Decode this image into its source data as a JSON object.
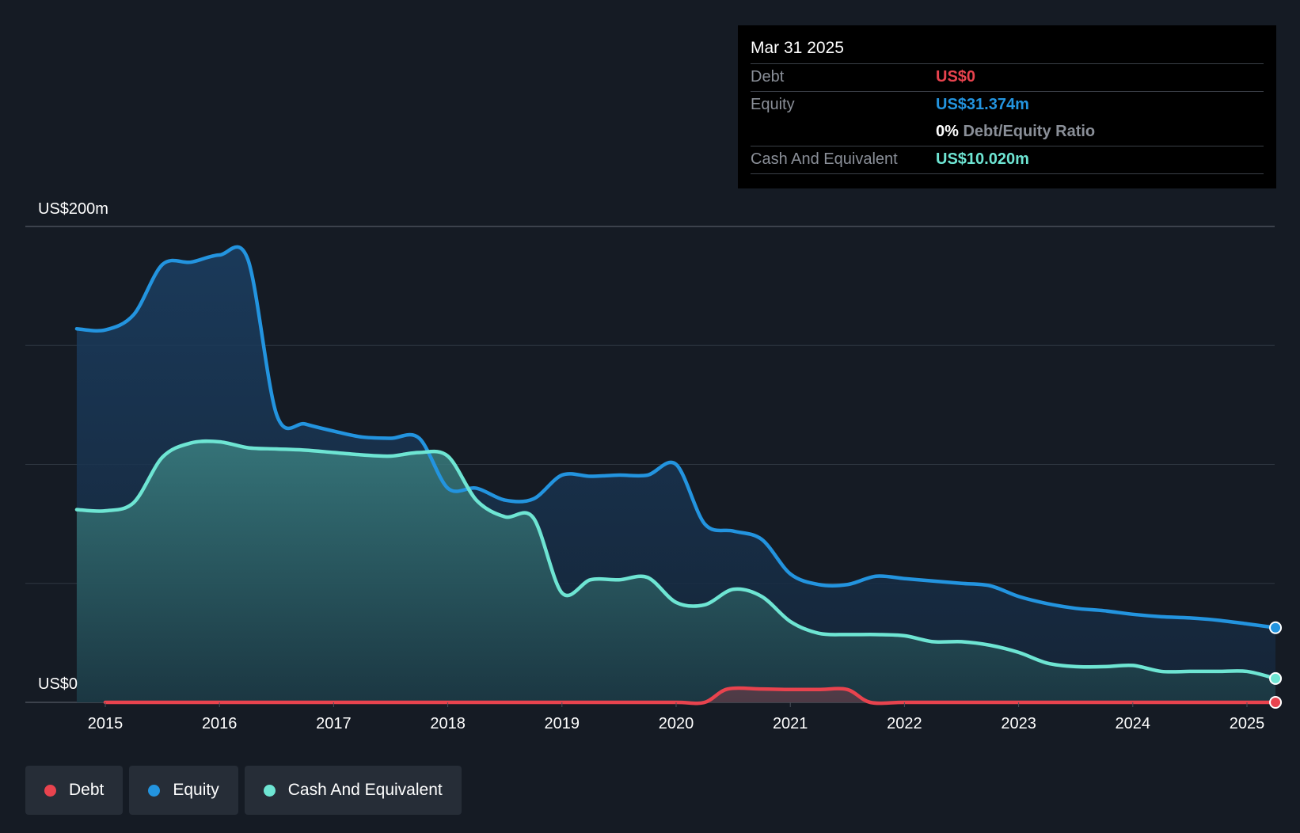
{
  "colors": {
    "background": "#151b24",
    "debt": "#e8434e",
    "equity": "#2394df",
    "cash": "#6ee5d3"
  },
  "tooltip": {
    "date": "Mar 31 2025",
    "debt_label": "Debt",
    "debt_value": "US$0",
    "equity_label": "Equity",
    "equity_value": "US$31.374m",
    "ratio_value": "0%",
    "ratio_label": "Debt/Equity Ratio",
    "cash_label": "Cash And Equivalent",
    "cash_value": "US$10.020m"
  },
  "legend": {
    "debt": "Debt",
    "equity": "Equity",
    "cash": "Cash And Equivalent"
  },
  "chart_data": {
    "type": "area",
    "title": "",
    "ylabel_top": "US$200m",
    "ylabel_bottom": "US$0",
    "ylim": [
      0,
      200
    ],
    "xlim": [
      2014.55,
      2025.45
    ],
    "grid": true,
    "legend_position": "bottom-left",
    "x_ticks": [
      "2015",
      "2016",
      "2017",
      "2018",
      "2019",
      "2020",
      "2021",
      "2022",
      "2023",
      "2024",
      "2025"
    ],
    "series": [
      {
        "name": "Equity",
        "x": [
          2014.75,
          2015.0,
          2015.25,
          2015.5,
          2015.75,
          2016.0,
          2016.25,
          2016.5,
          2016.75,
          2017.0,
          2017.25,
          2017.5,
          2017.75,
          2018.0,
          2018.25,
          2018.5,
          2018.75,
          2019.0,
          2019.25,
          2019.5,
          2019.75,
          2020.0,
          2020.25,
          2020.5,
          2020.75,
          2021.0,
          2021.25,
          2021.5,
          2021.75,
          2022.0,
          2022.25,
          2022.5,
          2022.75,
          2023.0,
          2023.25,
          2023.5,
          2023.75,
          2024.0,
          2024.25,
          2024.5,
          2024.75,
          2025.0,
          2025.25
        ],
        "values": [
          157,
          156.5,
          163,
          184,
          185,
          188,
          186,
          121,
          117,
          114,
          111.5,
          111,
          111,
          90,
          90,
          85,
          85.5,
          95.5,
          95,
          95.5,
          95.5,
          100,
          75,
          72,
          68.5,
          54,
          49.5,
          49.5,
          53,
          52,
          51,
          50,
          49,
          44.5,
          41.5,
          39.5,
          38.5,
          37,
          36,
          35.5,
          34.5,
          33,
          31.374
        ]
      },
      {
        "name": "Cash And Equivalent",
        "x": [
          2014.75,
          2015.0,
          2015.25,
          2015.5,
          2015.75,
          2016.0,
          2016.25,
          2016.5,
          2016.75,
          2017.0,
          2017.25,
          2017.5,
          2017.75,
          2018.0,
          2018.25,
          2018.5,
          2018.75,
          2019.0,
          2019.25,
          2019.5,
          2019.75,
          2020.0,
          2020.25,
          2020.5,
          2020.75,
          2021.0,
          2021.25,
          2021.5,
          2021.75,
          2022.0,
          2022.25,
          2022.5,
          2022.75,
          2023.0,
          2023.25,
          2023.5,
          2023.75,
          2024.0,
          2024.25,
          2024.5,
          2024.75,
          2025.0,
          2025.25
        ],
        "values": [
          81,
          80.5,
          84,
          103,
          109,
          109.5,
          107,
          106.5,
          106,
          105,
          104,
          103.5,
          105,
          103.5,
          85,
          78,
          77.5,
          46,
          51.5,
          51.5,
          52.5,
          42,
          41,
          47.5,
          44.5,
          34,
          29,
          28.5,
          28.5,
          28,
          25.5,
          25.5,
          24,
          21,
          16.5,
          15,
          15,
          15.5,
          13,
          13,
          13,
          13,
          10.02
        ]
      },
      {
        "name": "Debt",
        "x": [
          2015.0,
          2015.5,
          2016.0,
          2016.5,
          2017.0,
          2017.5,
          2018.0,
          2018.5,
          2019.0,
          2019.5,
          2020.0,
          2020.25,
          2020.45,
          2020.75,
          2021.0,
          2021.25,
          2021.5,
          2021.7,
          2022.0,
          2022.5,
          2023.0,
          2023.5,
          2024.0,
          2024.5,
          2025.0,
          2025.25
        ],
        "values": [
          0,
          0,
          0,
          0,
          0,
          0,
          0,
          0,
          0,
          0,
          0,
          0,
          5.6,
          5.6,
          5.4,
          5.4,
          5.4,
          0,
          0,
          0,
          0,
          0,
          0,
          0,
          0,
          0
        ]
      }
    ]
  }
}
